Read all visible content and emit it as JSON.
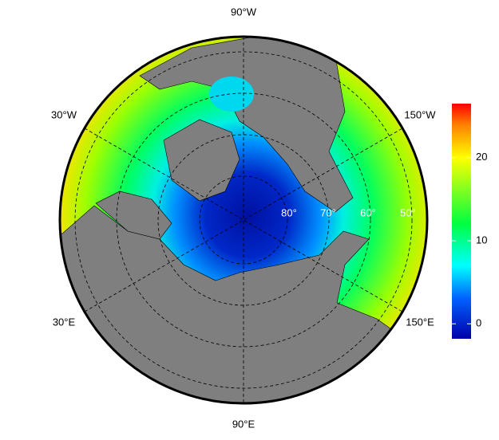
{
  "map": {
    "longitude_labels": [
      "90°W",
      "150°W",
      "150°E",
      "90°E",
      "30°E",
      "30°W"
    ],
    "latitude_labels": [
      "80°",
      "70°",
      "60°",
      "50°"
    ]
  },
  "colorbar": {
    "range": [
      -1.8,
      26.5
    ],
    "ticks": [
      0,
      10,
      20
    ]
  }
}
